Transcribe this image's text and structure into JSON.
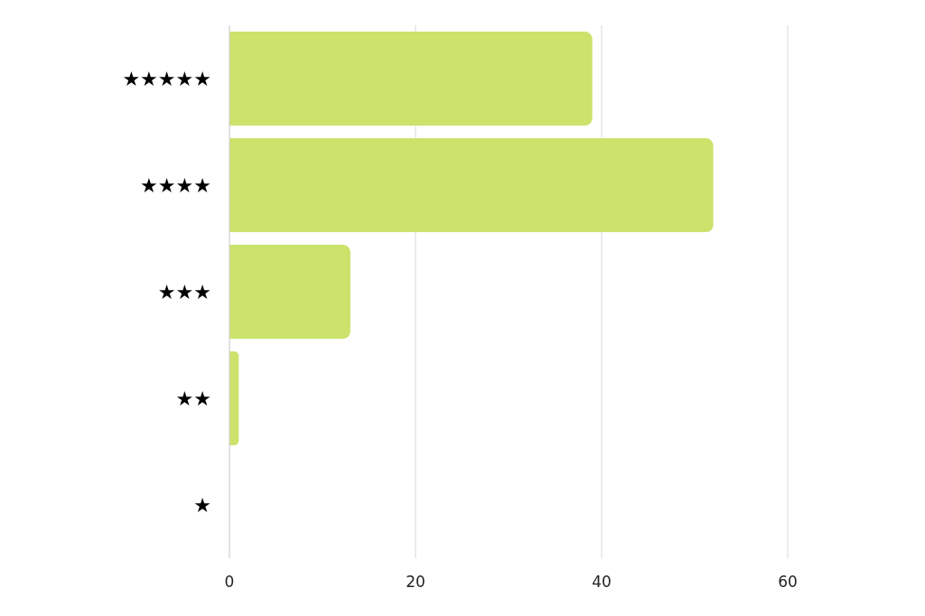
{
  "chart_data": {
    "type": "bar",
    "orientation": "horizontal",
    "categories": [
      "★★★★★",
      "★★★★",
      "★★★",
      "★★",
      "★"
    ],
    "values": [
      39,
      52,
      13,
      1,
      0
    ],
    "color": "#cbe26b",
    "xlim": [
      0,
      60
    ],
    "xticks": [
      0,
      20,
      40,
      60
    ],
    "grid": "x"
  }
}
